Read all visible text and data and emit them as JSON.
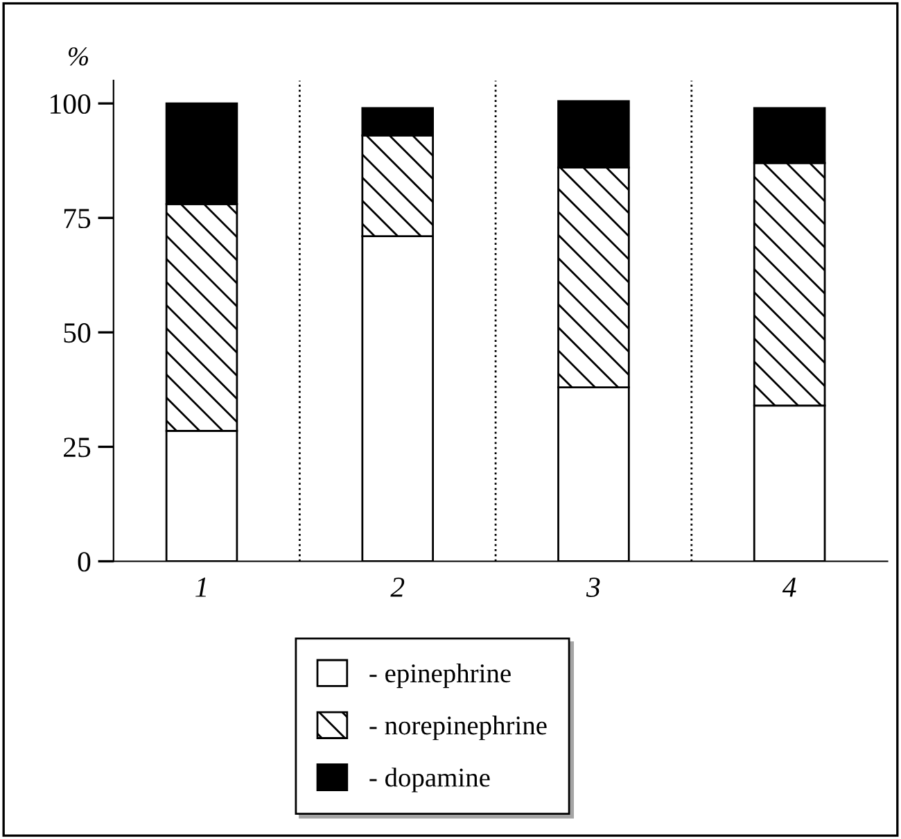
{
  "chart_data": {
    "type": "bar",
    "stacked": true,
    "ylabel": "%",
    "x": [
      1,
      2,
      3,
      4
    ],
    "xlim": [
      0.55,
      4.5
    ],
    "xticks": [
      1,
      2,
      3,
      4
    ],
    "ylim": [
      0,
      105
    ],
    "yticks": [
      0,
      25,
      50,
      75,
      100
    ],
    "series": [
      {
        "name": "- epinephrine",
        "color": "#ffffff",
        "values": [
          28.5,
          71,
          38,
          34
        ]
      },
      {
        "name": "- norepinephrine",
        "color": "#000000",
        "values": [
          49.5,
          22,
          48,
          53
        ]
      },
      {
        "name": "- dopamine",
        "color": "#000000",
        "values": [
          22,
          6,
          14.5,
          12
        ]
      }
    ],
    "ref_lines": [
      {
        "axis": "x",
        "value": 1.5,
        "line_style": "dotted",
        "color": "#000000"
      },
      {
        "axis": "x",
        "value": 2.5,
        "line_style": "dotted",
        "color": "#000000"
      },
      {
        "axis": "x",
        "value": 3.5,
        "line_style": "dotted",
        "color": "#000000"
      }
    ],
    "grid": false,
    "legend": "bottom"
  }
}
